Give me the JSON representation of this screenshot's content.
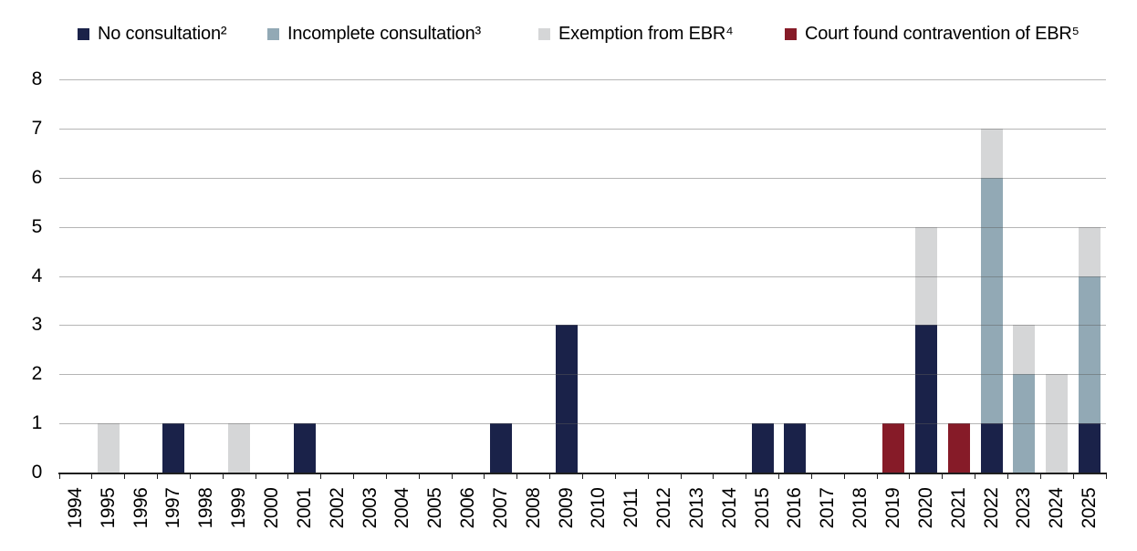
{
  "chart_data": {
    "type": "bar",
    "stacked": true,
    "title": "",
    "xlabel": "",
    "ylabel": "",
    "categories": [
      "1994",
      "1995",
      "1996",
      "1997",
      "1998",
      "1999",
      "2000",
      "2001",
      "2002",
      "2003",
      "2004",
      "2005",
      "2006",
      "2007",
      "2008",
      "2009",
      "2010",
      "2011",
      "2012",
      "2013",
      "2014",
      "2015",
      "2016",
      "2017",
      "2018",
      "2019",
      "2020",
      "2021",
      "2022",
      "2023",
      "2024",
      "2025"
    ],
    "series": [
      {
        "name": "No consultation²",
        "color": "#1A2249",
        "values": [
          0,
          0,
          0,
          1,
          0,
          0,
          0,
          1,
          0,
          0,
          0,
          0,
          0,
          1,
          0,
          3,
          0,
          0,
          0,
          0,
          0,
          1,
          1,
          0,
          0,
          0,
          3,
          0,
          1,
          0,
          0,
          1
        ]
      },
      {
        "name": "Incomplete consultation³",
        "color": "#92A9B5",
        "values": [
          0,
          0,
          0,
          0,
          0,
          0,
          0,
          0,
          0,
          0,
          0,
          0,
          0,
          0,
          0,
          0,
          0,
          0,
          0,
          0,
          0,
          0,
          0,
          0,
          0,
          0,
          0,
          0,
          5,
          2,
          0,
          3
        ]
      },
      {
        "name": "Exemption from EBR⁴",
        "color": "#D5D6D7",
        "values": [
          0,
          1,
          0,
          0,
          0,
          1,
          0,
          0,
          0,
          0,
          0,
          0,
          0,
          0,
          0,
          0,
          0,
          0,
          0,
          0,
          0,
          0,
          0,
          0,
          0,
          0,
          2,
          0,
          1,
          1,
          2,
          1
        ]
      },
      {
        "name": "Court found contravention of EBR⁵",
        "color": "#861B28",
        "values": [
          0,
          0,
          0,
          0,
          0,
          0,
          0,
          0,
          0,
          0,
          0,
          0,
          0,
          0,
          0,
          0,
          0,
          0,
          0,
          0,
          0,
          0,
          0,
          0,
          0,
          1,
          0,
          1,
          0,
          0,
          0,
          0
        ]
      }
    ],
    "ylim": [
      0,
      8
    ],
    "yticks": [
      "0",
      "1",
      "2",
      "3",
      "4",
      "5",
      "6",
      "7",
      "8"
    ],
    "legend_position": "top",
    "grid": "horizontal"
  },
  "colors": {
    "background": "#FFFFFF",
    "gridline": "#B5B5B5",
    "axis_line": "#1F1F1F",
    "text": "#000000"
  }
}
